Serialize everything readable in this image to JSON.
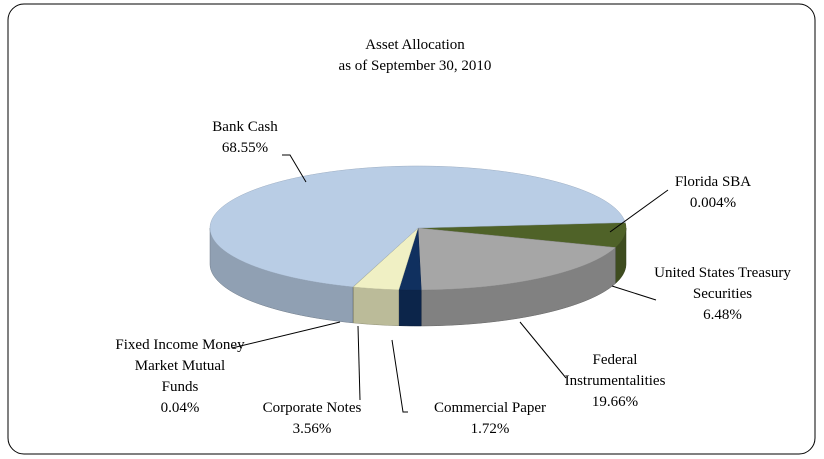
{
  "chart_data": {
    "type": "pie3d",
    "title": "Asset Allocation",
    "subtitle": "as of  September 30, 2010",
    "categories": [
      "Florida SBA",
      "United States Treasury Securities",
      "Federal Instrumentalities",
      "Commercial Paper",
      "Corporate Notes",
      "Fixed Income Money Market Mutual Funds",
      "Bank Cash"
    ],
    "values": [
      0.004,
      6.48,
      19.66,
      1.72,
      3.56,
      0.04,
      68.55
    ],
    "value_labels": [
      "0.004%",
      "6.48%",
      "19.66%",
      "1.72%",
      "3.56%",
      "0.04%",
      "68.55%"
    ],
    "colors": [
      "#3b4a1c",
      "#4f6228",
      "#a6a6a6",
      "#10305f",
      "#f0f0c4",
      "#d8d8a8",
      "#b9cde5"
    ]
  }
}
